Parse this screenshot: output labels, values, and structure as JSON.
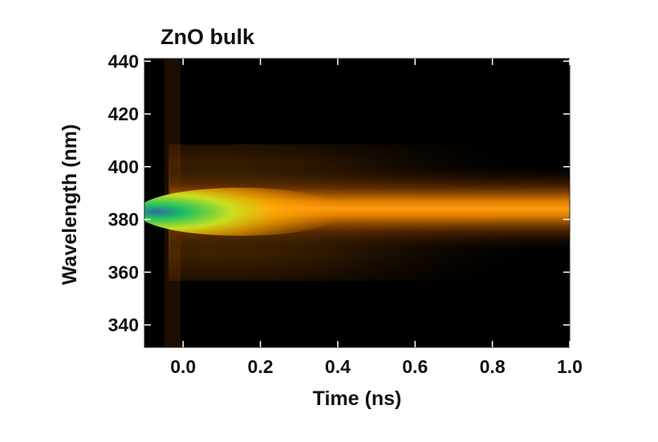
{
  "chart_data": {
    "type": "heatmap",
    "title": "ZnO bulk",
    "xlabel": "Time (ns)",
    "ylabel": "Wavelength (nm)",
    "xlim": [
      -0.1,
      1.0
    ],
    "ylim": [
      331.5,
      441
    ],
    "xticks": [
      {
        "value": 0,
        "label": "0.0"
      },
      0.2,
      0.4,
      0.6,
      0.8,
      {
        "value": 1,
        "label": "1.0"
      }
    ],
    "yticks": [
      340,
      360,
      380,
      400,
      420,
      440
    ]
  }
}
